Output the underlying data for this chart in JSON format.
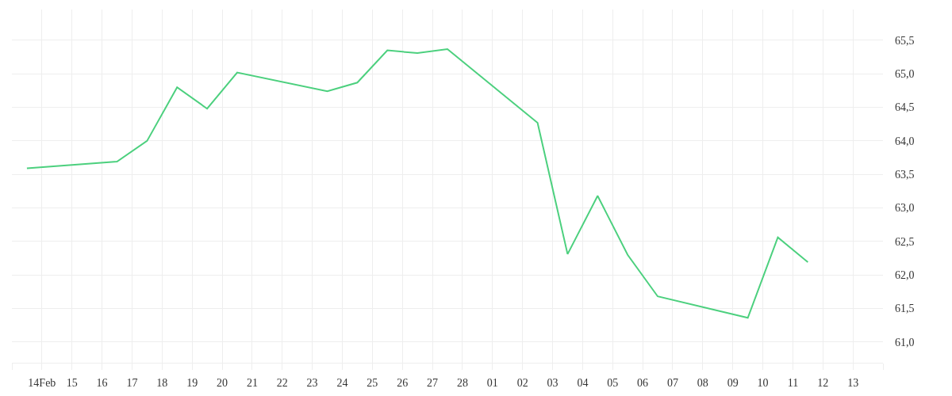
{
  "chart_data": {
    "type": "line",
    "x": [
      "--02-13T12:00",
      "--02-16T12:00",
      "--02-17T12:00",
      "--02-18T12:00",
      "--02-19T12:00",
      "--02-20T12:00",
      "--02-23T12:00",
      "--02-24T12:00",
      "--02-25T12:00",
      "--02-26T12:00",
      "--02-27T12:00",
      "--03-02T12:00",
      "--03-03T12:00",
      "--03-04T12:00",
      "--03-05T12:00",
      "--03-06T12:00",
      "--03-09T12:00",
      "--03-10T12:00",
      "--03-11T12:00"
    ],
    "values": [
      63.59,
      63.69,
      64.0,
      64.8,
      64.48,
      65.02,
      64.74,
      64.87,
      65.35,
      65.31,
      65.37,
      64.27,
      62.31,
      63.18,
      62.3,
      61.68,
      61.36,
      62.56,
      62.19
    ],
    "color": "#4cd07e",
    "xlim": [
      "--02-13",
      "--03-14"
    ],
    "xticks": [
      {
        "value": "--02-13",
        "label": null
      },
      {
        "value": "--02-14",
        "label": "14Feb"
      },
      {
        "value": "--02-15",
        "label": "15"
      },
      {
        "value": "--02-16",
        "label": "16"
      },
      {
        "value": "--02-17",
        "label": "17"
      },
      {
        "value": "--02-18",
        "label": "18"
      },
      {
        "value": "--02-19",
        "label": "19"
      },
      {
        "value": "--02-20",
        "label": "20"
      },
      {
        "value": "--02-21",
        "label": "21"
      },
      {
        "value": "--02-22",
        "label": "22"
      },
      {
        "value": "--02-23",
        "label": "23"
      },
      {
        "value": "--02-24",
        "label": "24"
      },
      {
        "value": "--02-25",
        "label": "25"
      },
      {
        "value": "--02-26",
        "label": "26"
      },
      {
        "value": "--02-27",
        "label": "27"
      },
      {
        "value": "--02-28",
        "label": "28"
      },
      {
        "value": "--03-01",
        "label": "01"
      },
      {
        "value": "--03-02",
        "label": "02"
      },
      {
        "value": "--03-03",
        "label": "03"
      },
      {
        "value": "--03-04",
        "label": "04"
      },
      {
        "value": "--03-05",
        "label": "05"
      },
      {
        "value": "--03-06",
        "label": "06"
      },
      {
        "value": "--03-07",
        "label": "07"
      },
      {
        "value": "--03-08",
        "label": "08"
      },
      {
        "value": "--03-09",
        "label": "09"
      },
      {
        "value": "--03-10",
        "label": "10"
      },
      {
        "value": "--03-11",
        "label": "11"
      },
      {
        "value": "--03-12",
        "label": "12"
      },
      {
        "value": "--03-13",
        "label": "13"
      },
      {
        "value": "--03-14",
        "label": null
      }
    ],
    "ylim": [
      60.69,
      65.96
    ],
    "yticks": [
      {
        "value": 61.0,
        "label": "61,0"
      },
      {
        "value": 61.5,
        "label": "61,5"
      },
      {
        "value": 62.0,
        "label": "62,0"
      },
      {
        "value": 62.5,
        "label": "62,5"
      },
      {
        "value": 63.0,
        "label": "63,0"
      },
      {
        "value": 63.5,
        "label": "63,5"
      },
      {
        "value": 64.0,
        "label": "64,0"
      },
      {
        "value": 64.5,
        "label": "64,5"
      },
      {
        "value": 65.0,
        "label": "65,0"
      },
      {
        "value": 65.5,
        "label": "65,5"
      }
    ],
    "grid": true
  }
}
